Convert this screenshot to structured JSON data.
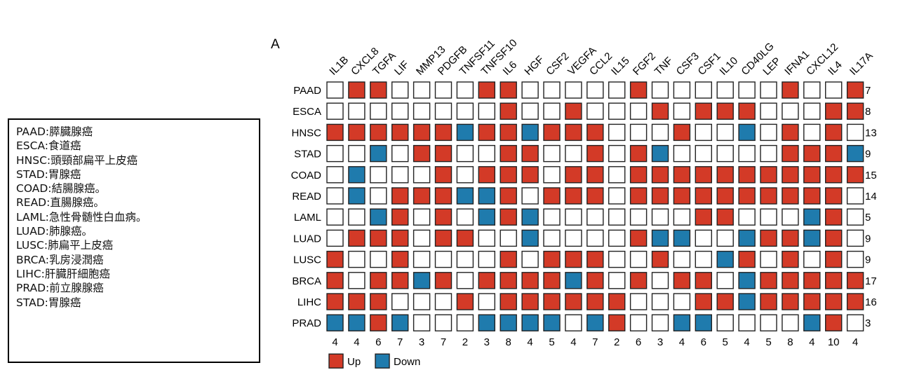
{
  "panel_label": "A",
  "abbrev_list": [
    "PAAD:膵臓腺癌",
    "ESCA:食道癌",
    "HNSC:頭頸部扁平上皮癌",
    "STAD:胃腺癌",
    "COAD:結腸腺癌。",
    "READ:直腸腺癌。",
    "LAML:急性骨髄性白血病。",
    "LUAD:肺腺癌。",
    "LUSC:肺扁平上皮癌",
    "BRCA:乳房浸潤癌",
    "LIHC:肝臓肝細胞癌",
    "PRAD:前立腺腺癌",
    "STAD:胃腺癌"
  ],
  "chart_data": {
    "type": "heatmap",
    "columns": [
      "IL1B",
      "CXCL8",
      "TGFA",
      "LIF",
      "MMP13",
      "PDGFB",
      "TNFSF11",
      "TNFSF10",
      "IL6",
      "HGF",
      "CSF2",
      "VEGFA",
      "CCL2",
      "IL15",
      "FGF2",
      "TNF",
      "CSF3",
      "CSF1",
      "IL10",
      "CD40LG",
      "LEP",
      "IFNA1",
      "CXCL12",
      "IL4",
      "IL17A"
    ],
    "rows": [
      "PAAD",
      "ESCA",
      "HNSC",
      "STAD",
      "COAD",
      "READ",
      "LAML",
      "LUAD",
      "LUSC",
      "BRCA",
      "LIHC",
      "PRAD"
    ],
    "encoding": {
      "1": "Up",
      "-1": "Down",
      "0": ""
    },
    "values": [
      [
        0,
        1,
        1,
        0,
        0,
        0,
        0,
        1,
        1,
        0,
        0,
        0,
        0,
        0,
        1,
        0,
        0,
        0,
        0,
        0,
        0,
        1,
        0,
        0,
        1
      ],
      [
        0,
        0,
        0,
        0,
        0,
        0,
        0,
        0,
        1,
        0,
        0,
        1,
        0,
        0,
        0,
        1,
        0,
        1,
        1,
        1,
        0,
        0,
        0,
        1,
        1
      ],
      [
        1,
        1,
        1,
        1,
        1,
        1,
        -1,
        1,
        1,
        -1,
        1,
        1,
        1,
        0,
        0,
        0,
        1,
        0,
        0,
        -1,
        0,
        1,
        0,
        1,
        0
      ],
      [
        0,
        0,
        -1,
        0,
        1,
        1,
        0,
        0,
        1,
        1,
        0,
        0,
        1,
        0,
        1,
        -1,
        0,
        0,
        0,
        0,
        0,
        1,
        1,
        1,
        -1
      ],
      [
        0,
        -1,
        0,
        0,
        0,
        1,
        0,
        1,
        1,
        1,
        0,
        1,
        1,
        0,
        1,
        1,
        1,
        1,
        1,
        1,
        1,
        1,
        1,
        1,
        1
      ],
      [
        0,
        -1,
        0,
        1,
        1,
        1,
        -1,
        -1,
        1,
        0,
        1,
        1,
        1,
        0,
        1,
        1,
        1,
        1,
        1,
        1,
        1,
        1,
        1,
        1,
        0
      ],
      [
        0,
        0,
        -1,
        1,
        0,
        1,
        0,
        -1,
        1,
        -1,
        0,
        0,
        0,
        0,
        0,
        0,
        0,
        1,
        1,
        0,
        0,
        0,
        -1,
        1,
        0
      ],
      [
        0,
        1,
        1,
        1,
        0,
        1,
        1,
        0,
        0,
        -1,
        0,
        0,
        0,
        0,
        1,
        -1,
        -1,
        0,
        0,
        -1,
        1,
        1,
        -1,
        1,
        0
      ],
      [
        1,
        0,
        0,
        1,
        0,
        0,
        0,
        0,
        1,
        0,
        1,
        1,
        1,
        0,
        0,
        1,
        0,
        0,
        -1,
        1,
        0,
        1,
        0,
        1,
        0
      ],
      [
        1,
        0,
        1,
        1,
        -1,
        1,
        0,
        1,
        1,
        1,
        1,
        -1,
        1,
        0,
        1,
        0,
        1,
        1,
        0,
        -1,
        1,
        1,
        1,
        1,
        1
      ],
      [
        1,
        1,
        1,
        0,
        0,
        0,
        1,
        0,
        1,
        1,
        1,
        1,
        1,
        1,
        0,
        0,
        0,
        1,
        1,
        -1,
        1,
        1,
        1,
        1,
        1
      ],
      [
        -1,
        -1,
        1,
        -1,
        0,
        0,
        0,
        -1,
        -1,
        -1,
        -1,
        0,
        -1,
        1,
        0,
        0,
        -1,
        -1,
        0,
        0,
        0,
        0,
        -1,
        1,
        0
      ]
    ],
    "row_totals": [
      "7",
      "8",
      "13",
      "9",
      "15",
      "14",
      "5",
      "9",
      "9",
      "17",
      "16",
      "3"
    ],
    "column_totals": [
      "4",
      "4",
      "6",
      "7",
      "3",
      "7",
      "2",
      "3",
      "8",
      "4",
      "5",
      "4",
      "7",
      "2",
      "6",
      "3",
      "4",
      "6",
      "5",
      "4",
      "5",
      "8",
      "4",
      "10",
      "4"
    ],
    "legend": [
      {
        "label": "Up",
        "color": "#d33a27"
      },
      {
        "label": "Down",
        "color": "#1f7bad"
      }
    ],
    "colors": {
      "up": "#d33a27",
      "down": "#1f7bad",
      "empty": "#ffffff",
      "border": "#222222"
    }
  }
}
